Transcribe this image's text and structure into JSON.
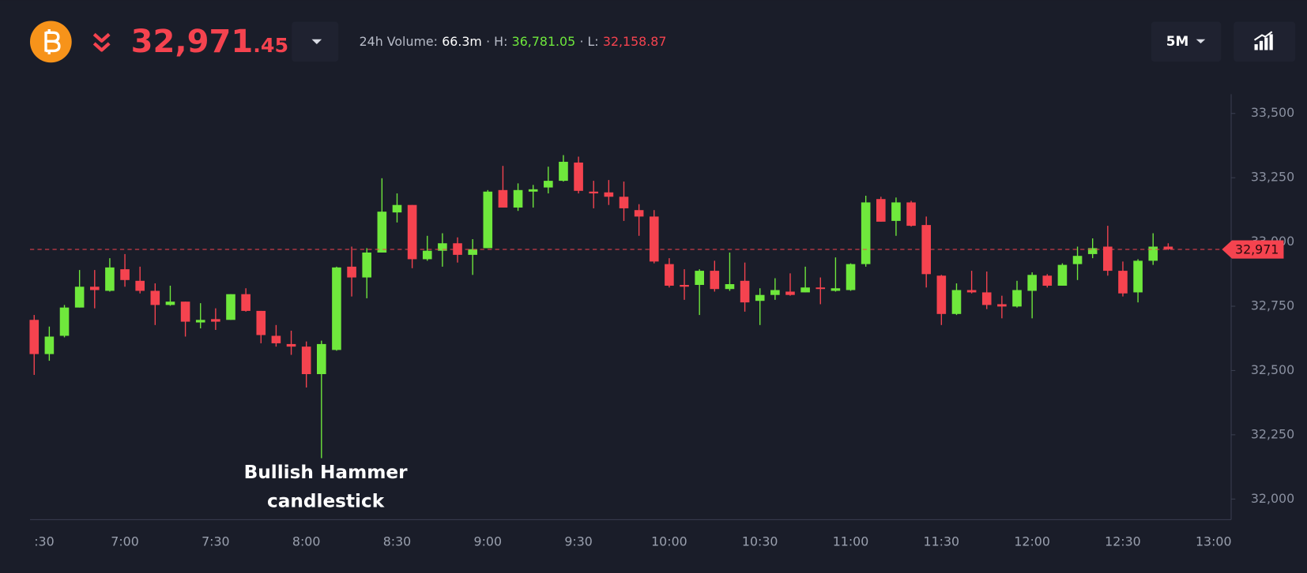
{
  "header": {
    "price_main": "32,971",
    "price_decimals": ".45",
    "volume_label": "24h Volume:",
    "volume": "66.3m",
    "high_label": "· H:",
    "high": "36,781.05",
    "low_label": "· L:",
    "low": "32,158.87",
    "interval": "5M"
  },
  "chart_data": {
    "type": "candlestick",
    "categories": [
      ":30",
      null,
      null,
      null,
      null,
      null,
      "7:00",
      null,
      null,
      null,
      null,
      null,
      "7:30",
      null,
      null,
      null,
      null,
      null,
      "8:00",
      null,
      null,
      null,
      null,
      null,
      "8:30",
      null,
      null,
      null,
      null,
      null,
      "9:00",
      null,
      null,
      null,
      null,
      null,
      "9:30",
      null,
      null,
      null,
      null,
      null,
      "10:00",
      null,
      null,
      null,
      null,
      null,
      "10:30",
      null,
      null,
      null,
      null,
      null,
      "11:00",
      null,
      null,
      null,
      null,
      null,
      "11:30",
      null,
      null,
      null,
      null,
      null,
      "12:00",
      null,
      null,
      null,
      null,
      null,
      "12:30",
      null,
      null,
      null,
      null,
      null,
      "13:00"
    ],
    "open": [
      32697,
      32564,
      32635,
      32745,
      32826,
      32810,
      32894,
      32849,
      32810,
      32755,
      32768,
      32687,
      32700,
      32697,
      32797,
      32732,
      32635,
      32603,
      32593,
      32486,
      32580,
      32904,
      32862,
      32959,
      33115,
      33144,
      32933,
      32966,
      32995,
      32950,
      32976,
      33202,
      33134,
      33196,
      33212,
      33238,
      33309,
      33196,
      33193,
      33176,
      33124,
      33099,
      32914,
      32833,
      32833,
      32888,
      32817,
      32849,
      32771,
      32794,
      32807,
      32804,
      32823,
      32810,
      32813,
      32914,
      33167,
      33082,
      33154,
      33066,
      32869,
      32720,
      32813,
      32804,
      32758,
      32749,
      32810,
      32869,
      32830,
      32914,
      32953,
      32982,
      32888,
      32804,
      32927,
      32982,
      null,
      null,
      null
    ],
    "high": [
      32716,
      32671,
      32755,
      32891,
      32891,
      32937,
      32953,
      32904,
      32839,
      32830,
      32768,
      32762,
      32742,
      32797,
      32820,
      32732,
      32677,
      32655,
      32613,
      32616,
      32904,
      32982,
      32976,
      33248,
      33189,
      33144,
      33024,
      33034,
      33018,
      33011,
      33202,
      33296,
      33228,
      33222,
      33293,
      33338,
      33332,
      33238,
      33241,
      33235,
      33147,
      33124,
      32937,
      32894,
      32894,
      32927,
      32959,
      32920,
      32820,
      32859,
      32878,
      32904,
      32862,
      32940,
      32917,
      33180,
      33176,
      33173,
      33160,
      33099,
      32872,
      32839,
      32888,
      32885,
      32791,
      32849,
      32882,
      32875,
      32917,
      32982,
      33014,
      33063,
      32924,
      32933,
      33034,
      32995,
      null,
      null,
      null
    ],
    "low": [
      32483,
      32538,
      32629,
      32745,
      32742,
      32807,
      32826,
      32800,
      32677,
      32752,
      32632,
      32664,
      32658,
      32697,
      32729,
      32606,
      32593,
      32561,
      32434,
      32159,
      32577,
      32788,
      32781,
      32959,
      33076,
      32898,
      32927,
      32904,
      32920,
      32872,
      32976,
      33134,
      33121,
      33134,
      33189,
      33235,
      33189,
      33131,
      33144,
      33082,
      33024,
      32917,
      32823,
      32775,
      32716,
      32807,
      32810,
      32729,
      32677,
      32775,
      32791,
      32804,
      32758,
      32807,
      32810,
      32904,
      33079,
      33024,
      33060,
      32823,
      32677,
      32716,
      32800,
      32739,
      32703,
      32745,
      32703,
      32823,
      32830,
      32852,
      32937,
      32869,
      32788,
      32765,
      32911,
      32969,
      null,
      null,
      null
    ],
    "close": [
      32564,
      32632,
      32745,
      32826,
      32813,
      32901,
      32852,
      32810,
      32755,
      32768,
      32690,
      32697,
      32690,
      32797,
      32732,
      32638,
      32606,
      32593,
      32486,
      32603,
      32901,
      32862,
      32959,
      33118,
      33144,
      32933,
      32966,
      32995,
      32950,
      32972,
      33196,
      33134,
      33202,
      33205,
      33238,
      33312,
      33199,
      33189,
      33176,
      33131,
      33099,
      32924,
      32830,
      32826,
      32888,
      32817,
      32836,
      32765,
      32794,
      32813,
      32794,
      32823,
      32817,
      32820,
      32914,
      33154,
      33079,
      33154,
      33063,
      32875,
      32720,
      32813,
      32804,
      32755,
      32749,
      32813,
      32872,
      32830,
      32911,
      32946,
      32976,
      32888,
      32800,
      32927,
      32982,
      32972,
      null,
      null,
      null
    ],
    "up_color": "#6fe83c",
    "down_color": "#f5434f",
    "ylim": [
      31920,
      33575
    ],
    "yticks": [
      {
        "value": 32000,
        "label": "32,000"
      },
      {
        "value": 32250,
        "label": "32,250"
      },
      {
        "value": 32500,
        "label": "32,500"
      },
      {
        "value": 32750,
        "label": "32,750"
      },
      {
        "value": 33000,
        "label": "33,000"
      },
      {
        "value": 33250,
        "label": "33,250"
      },
      {
        "value": 33500,
        "label": "33,500"
      }
    ],
    "current_price": {
      "value": 32971,
      "label": "32,971"
    },
    "annotation": {
      "index": 19,
      "lines": [
        "Bullish Hammer",
        "candlestick"
      ]
    }
  }
}
